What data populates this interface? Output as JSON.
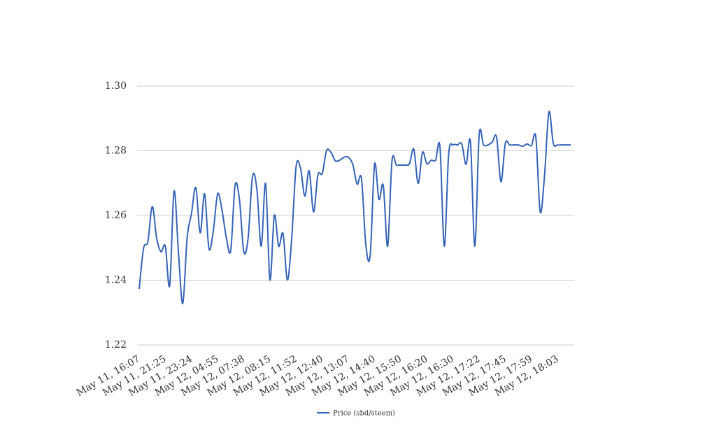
{
  "chart_data": {
    "type": "line",
    "categories": [
      "May 11, 16:07",
      null,
      null,
      null,
      null,
      null,
      "May 11, 21:25",
      null,
      null,
      null,
      null,
      null,
      "May 11, 23:24",
      null,
      null,
      null,
      null,
      null,
      "May 12, 04:55",
      null,
      null,
      null,
      null,
      null,
      "May 12, 07:38",
      null,
      null,
      null,
      null,
      null,
      "May 12, 08:15",
      null,
      null,
      null,
      null,
      null,
      "May 12, 11:52",
      null,
      null,
      null,
      null,
      null,
      "May 12, 12:40",
      null,
      null,
      null,
      null,
      null,
      "May 12, 13:07",
      null,
      null,
      null,
      null,
      null,
      "May 12, 14:40",
      null,
      null,
      null,
      null,
      null,
      "May 12, 15:50",
      null,
      null,
      null,
      null,
      null,
      "May 12, 16:20",
      null,
      null,
      null,
      null,
      null,
      "May 12, 16:30",
      null,
      null,
      null,
      null,
      null,
      "May 12, 17:22",
      null,
      null,
      null,
      null,
      null,
      "May 12, 17:45",
      null,
      null,
      null,
      null,
      null,
      "May 12, 17:59",
      null,
      null,
      null,
      null,
      null,
      "May 12, 18:03",
      null,
      null,
      null
    ],
    "series": [
      {
        "name": "Price (sbd/steem)",
        "color": "#3563b8",
        "values": [
          1.2373,
          1.2498,
          1.252,
          1.2628,
          1.2531,
          1.2488,
          1.2505,
          1.2384,
          1.2675,
          1.2488,
          1.2328,
          1.2531,
          1.2606,
          1.2686,
          1.2546,
          1.2667,
          1.2498,
          1.2552,
          1.2667,
          1.2617,
          1.2531,
          1.2492,
          1.2693,
          1.265,
          1.2488,
          1.2531,
          1.2721,
          1.2682,
          1.2505,
          1.2699,
          1.2401,
          1.26,
          1.2505,
          1.2544,
          1.2401,
          1.2531,
          1.2751,
          1.2747,
          1.266,
          1.2738,
          1.2611,
          1.2725,
          1.273,
          1.2801,
          1.2795,
          1.2769,
          1.2771,
          1.278,
          1.278,
          1.2758,
          1.2697,
          1.2714,
          1.2509,
          1.2477,
          1.2758,
          1.265,
          1.2693,
          1.2505,
          1.2769,
          1.2756,
          1.2756,
          1.2756,
          1.276,
          1.2805,
          1.2699,
          1.2795,
          1.276,
          1.2771,
          1.2771,
          1.2812,
          1.2505,
          1.279,
          1.2818,
          1.2818,
          1.2821,
          1.2758,
          1.2827,
          1.2505,
          1.2849,
          1.2818,
          1.2818,
          1.2827,
          1.2842,
          1.2704,
          1.2823,
          1.2818,
          1.2818,
          1.2818,
          1.2814,
          1.2821,
          1.2816,
          1.2842,
          1.2611,
          1.2725,
          1.292,
          1.2823,
          1.2818,
          1.2818,
          1.2818,
          1.2818
        ]
      }
    ],
    "ylim": [
      1.22,
      1.3
    ],
    "yticks": [
      1.22,
      1.24,
      1.26,
      1.28,
      {
        "value": 1.3,
        "label": "1.30"
      }
    ],
    "grid": true,
    "legend": "bottom"
  }
}
